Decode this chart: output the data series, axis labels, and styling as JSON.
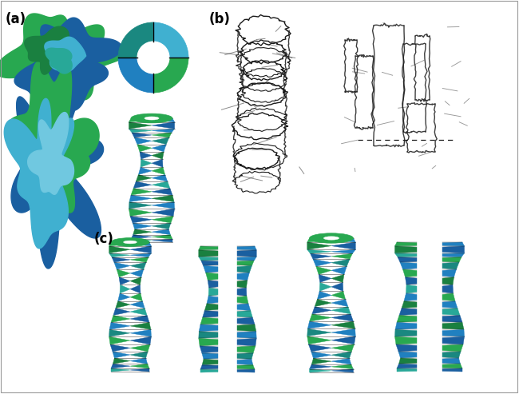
{
  "label_a": "(a)",
  "label_b": "(b)",
  "label_c": "(c)",
  "label_fontsize": 12,
  "label_fontweight": "bold",
  "bg_color": "#ffffff",
  "blue_dark": "#1a5fa0",
  "blue_mid": "#2080c0",
  "blue_light": "#40b0d0",
  "blue_v_light": "#70c8e0",
  "green_dark": "#1a8040",
  "green_mid": "#28a850",
  "green_light": "#40c870",
  "teal_dark": "#1a8880",
  "teal_mid": "#28a898",
  "teal_light": "#40c0b8",
  "sketch_color": "#1a1a1a",
  "fig_width": 6.5,
  "fig_height": 4.93,
  "dpi": 100
}
